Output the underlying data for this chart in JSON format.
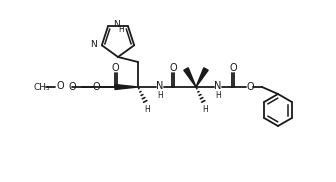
{
  "bg_color": "#ffffff",
  "line_color": "#1a1a1a",
  "line_width": 1.3,
  "font_size": 7.0,
  "fig_width": 3.36,
  "fig_height": 1.82,
  "dpi": 100,
  "xlim": [
    0,
    336
  ],
  "ylim": [
    0,
    182
  ]
}
